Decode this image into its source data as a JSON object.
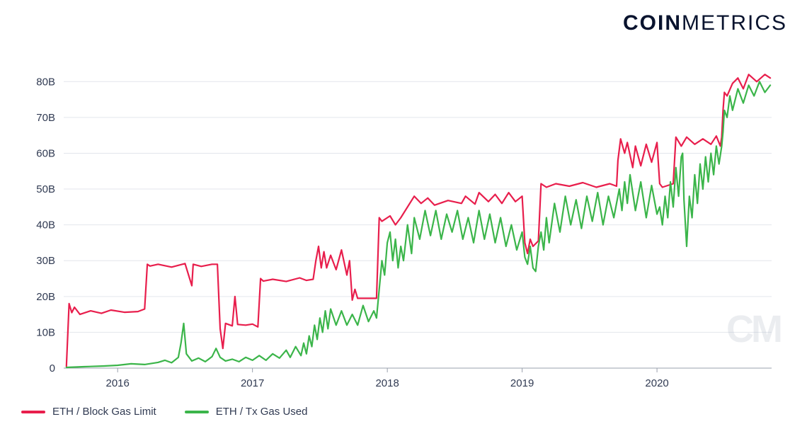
{
  "brand": {
    "bold": "COIN",
    "light": "METRICS"
  },
  "watermark": "CM",
  "chart": {
    "type": "line",
    "background_color": "#ffffff",
    "grid_color": "#e3e6ec",
    "axis_color": "#9aa0ad",
    "tick_font_size": 15,
    "line_width": 2.2,
    "y": {
      "min": 0,
      "max": 85,
      "ticks": [
        0,
        10,
        20,
        30,
        40,
        50,
        60,
        70,
        80
      ],
      "tick_labels": [
        "0",
        "10B",
        "20B",
        "30B",
        "40B",
        "50B",
        "60B",
        "70B",
        "80B"
      ]
    },
    "x": {
      "min": 2015.6,
      "max": 2020.85,
      "ticks": [
        2016,
        2017,
        2018,
        2019,
        2020
      ],
      "tick_labels": [
        "2016",
        "2017",
        "2018",
        "2019",
        "2020"
      ]
    },
    "series": [
      {
        "id": "gas_limit",
        "label": "ETH / Block Gas Limit",
        "color": "#e81e4c",
        "points": [
          [
            2015.62,
            0.5
          ],
          [
            2015.64,
            18.0
          ],
          [
            2015.66,
            15.5
          ],
          [
            2015.68,
            17.0
          ],
          [
            2015.72,
            15.0
          ],
          [
            2015.8,
            16.0
          ],
          [
            2015.88,
            15.3
          ],
          [
            2015.95,
            16.2
          ],
          [
            2016.05,
            15.6
          ],
          [
            2016.15,
            15.8
          ],
          [
            2016.2,
            16.5
          ],
          [
            2016.22,
            29.0
          ],
          [
            2016.24,
            28.5
          ],
          [
            2016.3,
            29.0
          ],
          [
            2016.4,
            28.2
          ],
          [
            2016.5,
            29.2
          ],
          [
            2016.55,
            23.0
          ],
          [
            2016.56,
            29.0
          ],
          [
            2016.62,
            28.4
          ],
          [
            2016.7,
            29.0
          ],
          [
            2016.74,
            29.0
          ],
          [
            2016.76,
            11.0
          ],
          [
            2016.78,
            5.5
          ],
          [
            2016.8,
            12.5
          ],
          [
            2016.85,
            11.8
          ],
          [
            2016.87,
            20.0
          ],
          [
            2016.89,
            12.2
          ],
          [
            2016.95,
            12.0
          ],
          [
            2017.0,
            12.3
          ],
          [
            2017.04,
            11.5
          ],
          [
            2017.06,
            25.0
          ],
          [
            2017.08,
            24.3
          ],
          [
            2017.15,
            24.8
          ],
          [
            2017.25,
            24.2
          ],
          [
            2017.35,
            25.2
          ],
          [
            2017.4,
            24.5
          ],
          [
            2017.45,
            24.8
          ],
          [
            2017.47,
            30.0
          ],
          [
            2017.49,
            34.0
          ],
          [
            2017.51,
            28.0
          ],
          [
            2017.53,
            32.5
          ],
          [
            2017.55,
            28.0
          ],
          [
            2017.58,
            31.5
          ],
          [
            2017.62,
            27.5
          ],
          [
            2017.66,
            33.0
          ],
          [
            2017.7,
            26.0
          ],
          [
            2017.72,
            30.0
          ],
          [
            2017.74,
            19.0
          ],
          [
            2017.76,
            22.0
          ],
          [
            2017.78,
            19.5
          ],
          [
            2017.92,
            19.5
          ],
          [
            2017.94,
            42.0
          ],
          [
            2017.96,
            41.0
          ],
          [
            2018.02,
            42.5
          ],
          [
            2018.06,
            40.0
          ],
          [
            2018.1,
            42.0
          ],
          [
            2018.2,
            48.0
          ],
          [
            2018.25,
            46.0
          ],
          [
            2018.3,
            47.5
          ],
          [
            2018.35,
            45.5
          ],
          [
            2018.45,
            46.8
          ],
          [
            2018.55,
            46.0
          ],
          [
            2018.58,
            48.0
          ],
          [
            2018.65,
            45.8
          ],
          [
            2018.68,
            49.0
          ],
          [
            2018.75,
            46.5
          ],
          [
            2018.8,
            48.5
          ],
          [
            2018.85,
            46.0
          ],
          [
            2018.9,
            49.0
          ],
          [
            2018.95,
            46.5
          ],
          [
            2019.0,
            48.0
          ],
          [
            2019.02,
            35.0
          ],
          [
            2019.04,
            32.0
          ],
          [
            2019.06,
            36.0
          ],
          [
            2019.08,
            34.0
          ],
          [
            2019.12,
            35.5
          ],
          [
            2019.14,
            51.5
          ],
          [
            2019.18,
            50.5
          ],
          [
            2019.25,
            51.5
          ],
          [
            2019.35,
            50.8
          ],
          [
            2019.45,
            51.8
          ],
          [
            2019.55,
            50.5
          ],
          [
            2019.65,
            51.5
          ],
          [
            2019.7,
            50.8
          ],
          [
            2019.71,
            58.0
          ],
          [
            2019.73,
            64.0
          ],
          [
            2019.76,
            60.0
          ],
          [
            2019.78,
            63.0
          ],
          [
            2019.82,
            56.0
          ],
          [
            2019.84,
            62.0
          ],
          [
            2019.88,
            56.5
          ],
          [
            2019.92,
            62.5
          ],
          [
            2019.96,
            57.5
          ],
          [
            2020.0,
            63.0
          ],
          [
            2020.02,
            51.5
          ],
          [
            2020.04,
            50.5
          ],
          [
            2020.12,
            51.5
          ],
          [
            2020.14,
            64.5
          ],
          [
            2020.18,
            62.0
          ],
          [
            2020.22,
            64.5
          ],
          [
            2020.28,
            62.5
          ],
          [
            2020.34,
            64.0
          ],
          [
            2020.4,
            62.5
          ],
          [
            2020.44,
            64.8
          ],
          [
            2020.47,
            62.0
          ],
          [
            2020.48,
            64.5
          ],
          [
            2020.49,
            72.0
          ],
          [
            2020.5,
            77.0
          ],
          [
            2020.52,
            76.0
          ],
          [
            2020.56,
            79.5
          ],
          [
            2020.6,
            81.0
          ],
          [
            2020.64,
            78.0
          ],
          [
            2020.68,
            82.0
          ],
          [
            2020.74,
            80.0
          ],
          [
            2020.8,
            82.0
          ],
          [
            2020.84,
            81.0
          ]
        ]
      },
      {
        "id": "gas_used",
        "label": "ETH / Tx Gas Used",
        "color": "#3bb54a",
        "points": [
          [
            2015.62,
            0.2
          ],
          [
            2015.75,
            0.4
          ],
          [
            2015.9,
            0.6
          ],
          [
            2016.0,
            0.8
          ],
          [
            2016.1,
            1.2
          ],
          [
            2016.2,
            1.0
          ],
          [
            2016.3,
            1.6
          ],
          [
            2016.35,
            2.2
          ],
          [
            2016.4,
            1.5
          ],
          [
            2016.45,
            3.0
          ],
          [
            2016.47,
            7.0
          ],
          [
            2016.49,
            12.5
          ],
          [
            2016.51,
            4.0
          ],
          [
            2016.55,
            2.0
          ],
          [
            2016.6,
            2.8
          ],
          [
            2016.65,
            1.8
          ],
          [
            2016.7,
            3.2
          ],
          [
            2016.73,
            5.5
          ],
          [
            2016.76,
            3.0
          ],
          [
            2016.8,
            2.0
          ],
          [
            2016.85,
            2.5
          ],
          [
            2016.9,
            1.8
          ],
          [
            2016.95,
            3.0
          ],
          [
            2017.0,
            2.2
          ],
          [
            2017.05,
            3.5
          ],
          [
            2017.1,
            2.2
          ],
          [
            2017.15,
            4.0
          ],
          [
            2017.2,
            2.8
          ],
          [
            2017.25,
            5.0
          ],
          [
            2017.28,
            3.0
          ],
          [
            2017.32,
            6.0
          ],
          [
            2017.36,
            3.5
          ],
          [
            2017.38,
            7.0
          ],
          [
            2017.4,
            4.0
          ],
          [
            2017.42,
            9.0
          ],
          [
            2017.44,
            6.0
          ],
          [
            2017.46,
            12.0
          ],
          [
            2017.48,
            8.0
          ],
          [
            2017.5,
            14.0
          ],
          [
            2017.52,
            10.0
          ],
          [
            2017.54,
            16.0
          ],
          [
            2017.56,
            11.0
          ],
          [
            2017.58,
            16.5
          ],
          [
            2017.62,
            12.0
          ],
          [
            2017.66,
            16.0
          ],
          [
            2017.7,
            12.0
          ],
          [
            2017.74,
            15.0
          ],
          [
            2017.78,
            12.0
          ],
          [
            2017.82,
            17.5
          ],
          [
            2017.86,
            13.0
          ],
          [
            2017.9,
            16.0
          ],
          [
            2017.92,
            14.0
          ],
          [
            2017.94,
            22.0
          ],
          [
            2017.96,
            30.0
          ],
          [
            2017.98,
            26.0
          ],
          [
            2018.0,
            35.0
          ],
          [
            2018.02,
            38.0
          ],
          [
            2018.04,
            30.0
          ],
          [
            2018.06,
            36.0
          ],
          [
            2018.08,
            28.0
          ],
          [
            2018.1,
            34.0
          ],
          [
            2018.12,
            30.0
          ],
          [
            2018.15,
            40.0
          ],
          [
            2018.18,
            32.0
          ],
          [
            2018.2,
            42.0
          ],
          [
            2018.24,
            36.0
          ],
          [
            2018.28,
            44.0
          ],
          [
            2018.32,
            37.0
          ],
          [
            2018.36,
            44.0
          ],
          [
            2018.4,
            36.0
          ],
          [
            2018.44,
            43.0
          ],
          [
            2018.48,
            38.0
          ],
          [
            2018.52,
            44.0
          ],
          [
            2018.56,
            36.0
          ],
          [
            2018.6,
            42.0
          ],
          [
            2018.64,
            35.0
          ],
          [
            2018.68,
            44.0
          ],
          [
            2018.72,
            36.0
          ],
          [
            2018.76,
            43.0
          ],
          [
            2018.8,
            35.0
          ],
          [
            2018.84,
            42.0
          ],
          [
            2018.88,
            34.0
          ],
          [
            2018.92,
            40.0
          ],
          [
            2018.96,
            33.0
          ],
          [
            2019.0,
            38.0
          ],
          [
            2019.02,
            31.0
          ],
          [
            2019.04,
            29.0
          ],
          [
            2019.06,
            34.0
          ],
          [
            2019.08,
            28.0
          ],
          [
            2019.1,
            27.0
          ],
          [
            2019.12,
            34.0
          ],
          [
            2019.14,
            38.0
          ],
          [
            2019.16,
            33.0
          ],
          [
            2019.18,
            42.0
          ],
          [
            2019.2,
            35.0
          ],
          [
            2019.24,
            46.0
          ],
          [
            2019.28,
            38.0
          ],
          [
            2019.32,
            48.0
          ],
          [
            2019.36,
            40.0
          ],
          [
            2019.4,
            47.0
          ],
          [
            2019.44,
            39.0
          ],
          [
            2019.48,
            48.0
          ],
          [
            2019.52,
            41.0
          ],
          [
            2019.56,
            49.0
          ],
          [
            2019.6,
            40.0
          ],
          [
            2019.64,
            48.0
          ],
          [
            2019.68,
            42.0
          ],
          [
            2019.72,
            50.0
          ],
          [
            2019.74,
            44.0
          ],
          [
            2019.76,
            52.0
          ],
          [
            2019.78,
            46.0
          ],
          [
            2019.8,
            54.0
          ],
          [
            2019.84,
            44.0
          ],
          [
            2019.88,
            52.0
          ],
          [
            2019.92,
            42.0
          ],
          [
            2019.96,
            51.0
          ],
          [
            2020.0,
            43.0
          ],
          [
            2020.02,
            45.0
          ],
          [
            2020.04,
            40.0
          ],
          [
            2020.06,
            48.0
          ],
          [
            2020.08,
            42.0
          ],
          [
            2020.1,
            52.0
          ],
          [
            2020.12,
            45.0
          ],
          [
            2020.14,
            56.0
          ],
          [
            2020.16,
            48.0
          ],
          [
            2020.18,
            59.0
          ],
          [
            2020.19,
            60.0
          ],
          [
            2020.2,
            47.0
          ],
          [
            2020.22,
            34.0
          ],
          [
            2020.24,
            48.0
          ],
          [
            2020.26,
            42.0
          ],
          [
            2020.28,
            54.0
          ],
          [
            2020.3,
            46.0
          ],
          [
            2020.32,
            57.0
          ],
          [
            2020.34,
            50.0
          ],
          [
            2020.36,
            59.0
          ],
          [
            2020.38,
            52.0
          ],
          [
            2020.4,
            60.0
          ],
          [
            2020.42,
            54.0
          ],
          [
            2020.44,
            62.0
          ],
          [
            2020.46,
            57.0
          ],
          [
            2020.48,
            62.0
          ],
          [
            2020.49,
            66.0
          ],
          [
            2020.5,
            72.0
          ],
          [
            2020.52,
            70.0
          ],
          [
            2020.54,
            76.0
          ],
          [
            2020.56,
            72.0
          ],
          [
            2020.6,
            78.0
          ],
          [
            2020.64,
            74.0
          ],
          [
            2020.68,
            79.0
          ],
          [
            2020.72,
            76.0
          ],
          [
            2020.76,
            80.0
          ],
          [
            2020.8,
            77.0
          ],
          [
            2020.84,
            79.0
          ]
        ]
      }
    ]
  }
}
